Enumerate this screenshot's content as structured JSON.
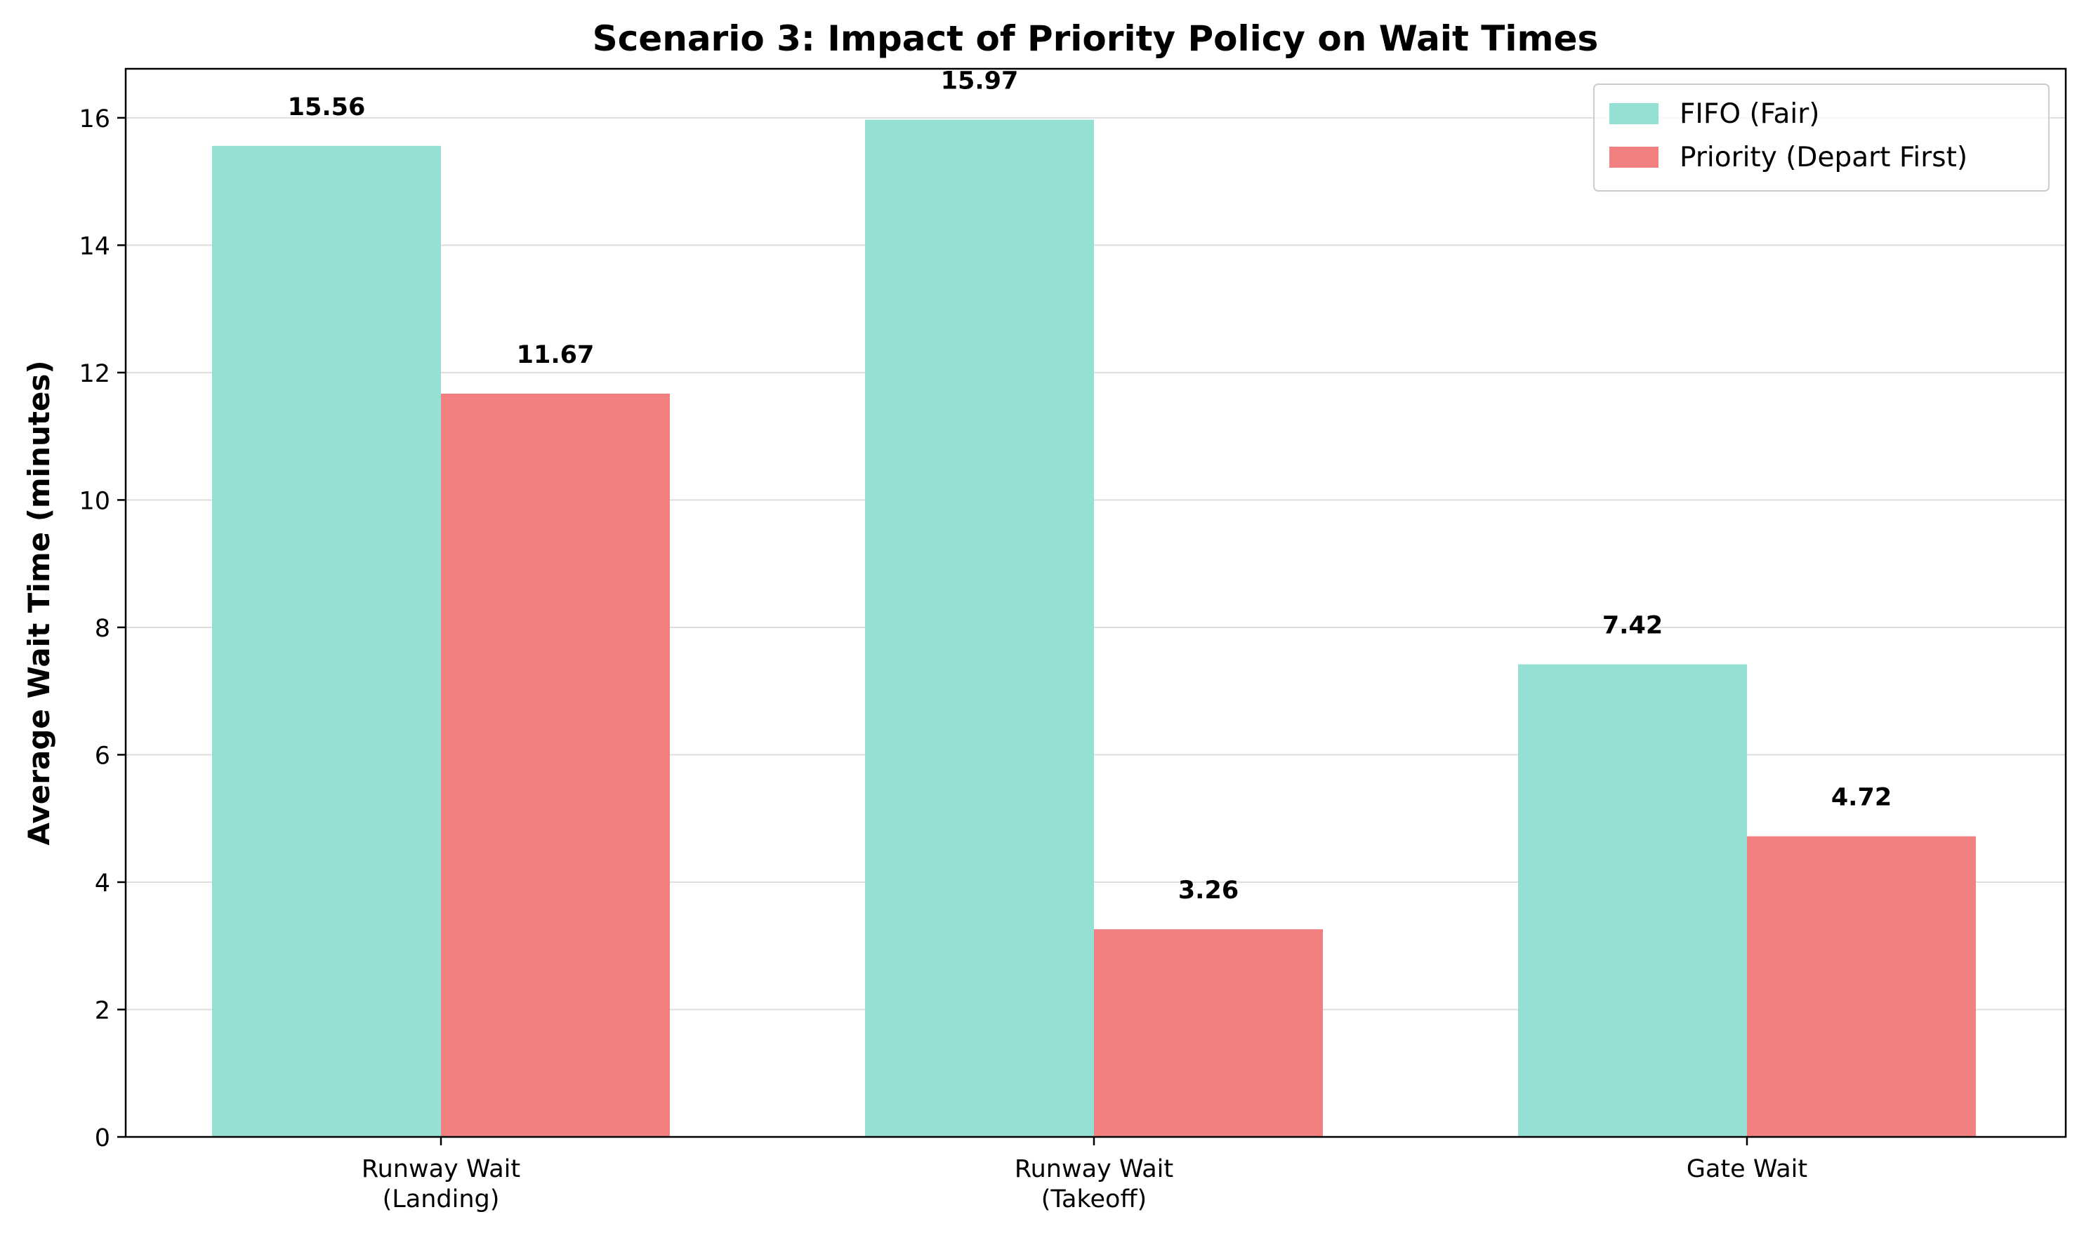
{
  "chart_data": {
    "type": "bar",
    "title": "Scenario 3: Impact of Priority Policy on Wait Times",
    "xlabel": "",
    "ylabel": "Average Wait Time (minutes)",
    "categories": [
      [
        "Runway Wait",
        "(Landing)"
      ],
      [
        "Runway Wait",
        "(Takeoff)"
      ],
      [
        "Gate Wait"
      ]
    ],
    "series": [
      {
        "name": "FIFO (Fair)",
        "values": [
          15.56,
          15.97,
          7.42
        ],
        "color": "#95E0D4",
        "labels": [
          "15.56",
          "15.97",
          "7.42"
        ]
      },
      {
        "name": "Priority (Depart First)",
        "values": [
          11.67,
          3.26,
          4.72
        ],
        "color": "#F28080",
        "labels": [
          "11.67",
          "3.26",
          "4.72"
        ]
      }
    ],
    "ylim": [
      0,
      16.77
    ],
    "yticks": [
      0,
      2,
      4,
      6,
      8,
      10,
      12,
      14,
      16
    ],
    "grid": "horizontal",
    "legend_position": "top-right"
  }
}
